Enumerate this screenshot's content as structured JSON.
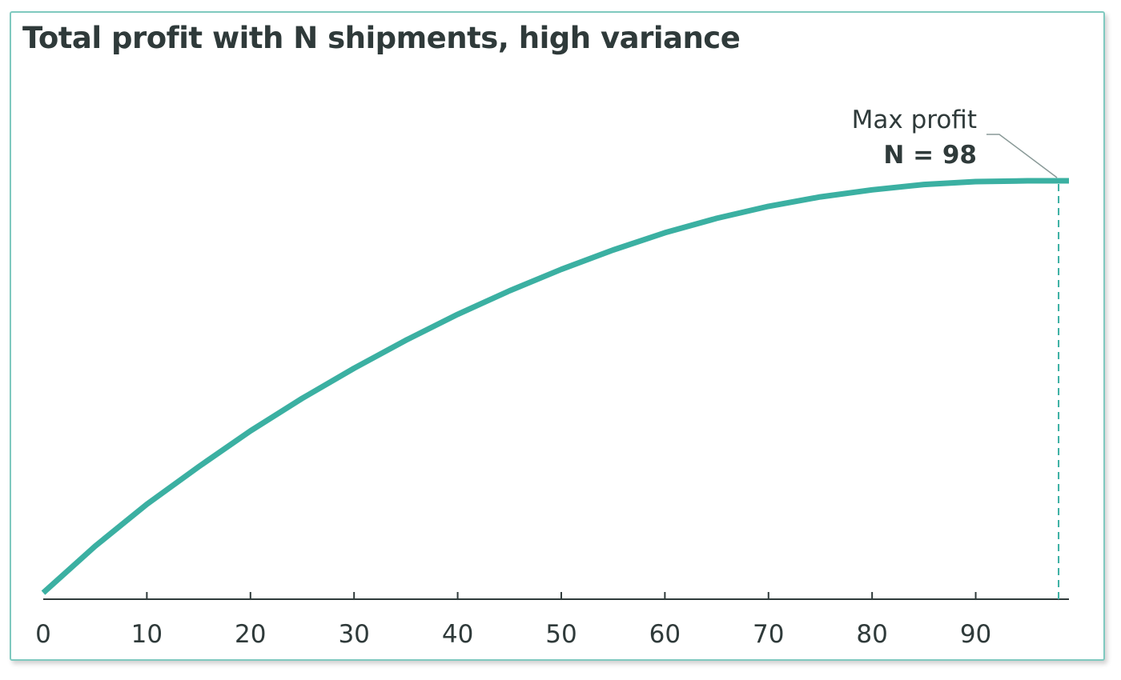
{
  "chart_data": {
    "type": "line",
    "title": "Total profit with N shipments, high variance",
    "xlabel": "",
    "ylabel": "",
    "xlim": [
      0,
      99
    ],
    "ylim": [
      0,
      1
    ],
    "x_ticks": [
      0,
      10,
      20,
      30,
      40,
      50,
      60,
      70,
      80,
      90
    ],
    "x_tick_labels": [
      "0",
      "10",
      "20",
      "30",
      "40",
      "50",
      "60",
      "70",
      "80",
      "90"
    ],
    "grid": false,
    "series": [
      {
        "color": "#3bb0a2",
        "x": [
          0,
          5,
          10,
          15,
          20,
          25,
          30,
          35,
          40,
          45,
          50,
          55,
          60,
          65,
          70,
          75,
          80,
          85,
          90,
          95,
          99
        ],
        "y": [
          0.0,
          0.113,
          0.215,
          0.306,
          0.393,
          0.472,
          0.545,
          0.613,
          0.676,
          0.733,
          0.785,
          0.832,
          0.874,
          0.909,
          0.938,
          0.961,
          0.978,
          0.991,
          0.998,
          1.0,
          1.0
        ]
      }
    ],
    "annotation": {
      "line1": "Max profit",
      "line2": "N = 98",
      "x": 98
    }
  },
  "colors": {
    "line": "#3bb0a2",
    "frame": "#7fc9bf",
    "text": "#2f3a3a"
  }
}
